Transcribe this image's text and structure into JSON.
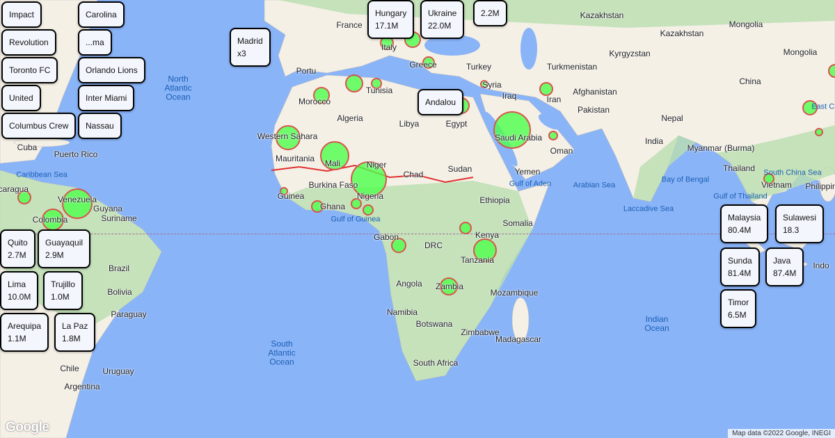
{
  "map": {
    "colors": {
      "ocean": "#8ab4f8",
      "land": "#f5f0e6",
      "vegetation": "#b9dfb0",
      "marker_fill": "#4cff4c",
      "marker_stroke": "#d9534f"
    },
    "places": [
      "Kazakhstan",
      "Mongolia",
      "France",
      "Kyrgyzstan",
      "Turkmenistan",
      "China",
      "Afghanistan",
      "Iraq",
      "Iran",
      "Pakistan",
      "Nepal",
      "India",
      "Syria",
      "Turkey",
      "Tunisia",
      "Morocco",
      "Algeria",
      "Libya",
      "Egypt",
      "Saudi Arabia",
      "Oman",
      "Yemen",
      "Western Sahara",
      "Mauritania",
      "Mali",
      "Niger",
      "Chad",
      "Sudan",
      "Burkina Faso",
      "Guinea",
      "Ghana",
      "Nigeria",
      "Ethiopia",
      "Somalia",
      "Kenya",
      "Gabon",
      "DRC",
      "Tanzania",
      "Angola",
      "Zambia",
      "Mozambique",
      "Namibia",
      "Botswana",
      "Zimbabwe",
      "Madagascar",
      "South Africa",
      "Myanmar (Burma)",
      "Thailand",
      "Vietnam",
      "Philippin",
      "Cuba",
      "Puerto Rico",
      "Venezuela",
      "Guyana",
      "Suriname",
      "Colombia",
      "Brazil",
      "Bolivia",
      "Paraguay",
      "Chile",
      "Uruguay",
      "Argentina",
      "Italy",
      "Portu",
      "Greece",
      "Mongolia",
      "Kazakhstan",
      "icaragua",
      "Indo"
    ],
    "seas": [
      "Caribbean Sea",
      "Gulf of Aden",
      "Arabian Sea",
      "Bay of Bengal",
      "Laccadive Sea",
      "Gulf of Guinea",
      "South China Sea",
      "Gulf of Thailand",
      "East Chi"
    ],
    "oceans": [
      "North\nAtlantic\nOcean",
      "South\nAtlantic\nOcean",
      "Indian\nOcean"
    ],
    "info_boxes": [
      {
        "title": "Impact"
      },
      {
        "title": "Revolution"
      },
      {
        "title": "Toronto FC"
      },
      {
        "title": "United"
      },
      {
        "title": "Columbus Crew"
      },
      {
        "title": "Carolina"
      },
      {
        "title": "...ma"
      },
      {
        "title": "Orlando Lions"
      },
      {
        "title": "Inter Miami"
      },
      {
        "title": "Nassau"
      },
      {
        "title": "Madrid",
        "value": "x3"
      },
      {
        "title": "Hungary",
        "value": "17.1M"
      },
      {
        "title": "Ukraine",
        "value": "22.0M"
      },
      {
        "title": "",
        "value": "2.2M"
      },
      {
        "title": "Andalou"
      },
      {
        "title": "Malaysia",
        "value": "80.4M"
      },
      {
        "title": "Java",
        "value": "87.4M"
      },
      {
        "title": "Sunda",
        "value": "81.4M"
      },
      {
        "title": "Sulawesi",
        "value": "18.3"
      },
      {
        "title": "Timor",
        "value": "6.5M"
      },
      {
        "title": "Quito",
        "value": "2.7M"
      },
      {
        "title": "Guayaquil",
        "value": "2.9M"
      },
      {
        "title": "Lima",
        "value": "10.0M"
      },
      {
        "title": "Trujillo",
        "value": "1.0M"
      },
      {
        "title": "Arequipa",
        "value": "1.1M"
      },
      {
        "title": "La Paz",
        "value": "1.8M"
      }
    ]
  },
  "footer": {
    "attribution": "Map data ©2022 Google, INEGI",
    "logo": "Google"
  }
}
